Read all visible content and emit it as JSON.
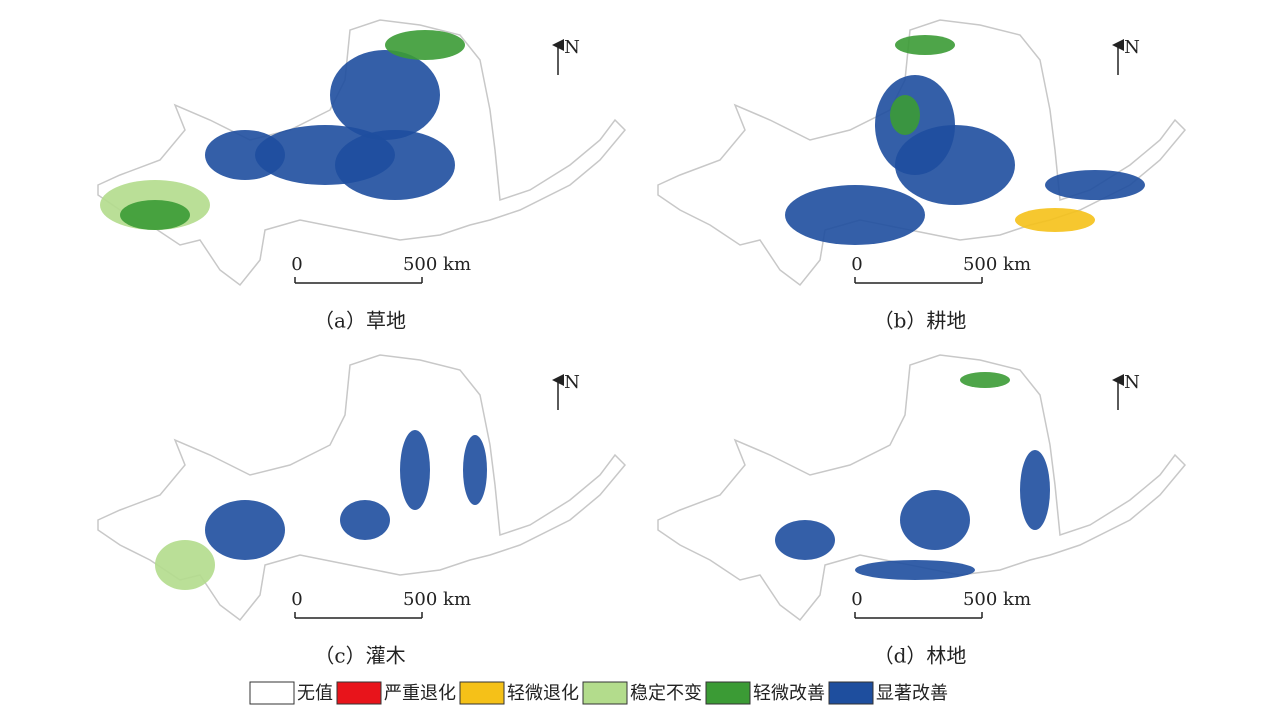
{
  "panels": [
    {
      "caption": "（a）草地",
      "scale_start": "0",
      "scale_end": "500 km",
      "north": "N"
    },
    {
      "caption": "（b）耕地",
      "scale_start": "0",
      "scale_end": "500 km",
      "north": "N"
    },
    {
      "caption": "（c）灌木",
      "scale_start": "0",
      "scale_end": "500 km",
      "north": "N"
    },
    {
      "caption": "（d）林地",
      "scale_start": "0",
      "scale_end": "500 km",
      "north": "N"
    }
  ],
  "legend": {
    "items": [
      {
        "label": "无值",
        "color": "#ffffff"
      },
      {
        "label": "严重退化",
        "color": "#e8141b"
      },
      {
        "label": "轻微退化",
        "color": "#f5c118"
      },
      {
        "label": "稳定不变",
        "color": "#b3dc8c"
      },
      {
        "label": "轻微改善",
        "color": "#3b9b35"
      },
      {
        "label": "显著改善",
        "color": "#1e4e9e"
      }
    ]
  }
}
